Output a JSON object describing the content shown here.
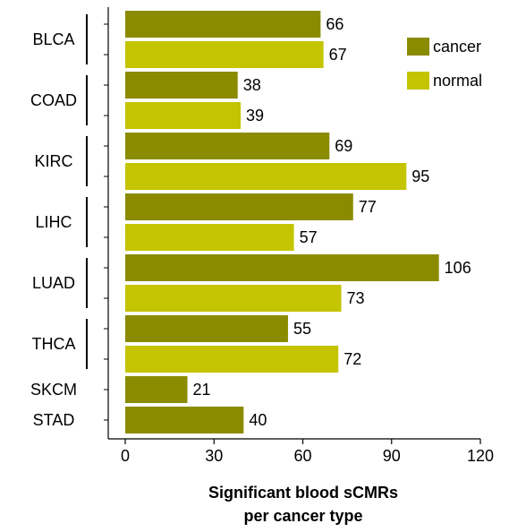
{
  "chart_data": {
    "type": "bar",
    "orientation": "horizontal",
    "categories": [
      "BLCA",
      "COAD",
      "KIRC",
      "LIHC",
      "LUAD",
      "THCA",
      "SKCM",
      "STAD"
    ],
    "series": [
      {
        "name": "cancer",
        "color": "#8b8b00",
        "values": [
          66,
          38,
          69,
          77,
          106,
          55,
          21,
          40
        ]
      },
      {
        "name": "normal",
        "color": "#c4c400",
        "values": [
          67,
          39,
          95,
          57,
          73,
          72,
          null,
          null
        ]
      }
    ],
    "xlabel": [
      "Significant blood sCMRs",
      "per cancer type"
    ],
    "xlim": [
      0,
      120
    ],
    "xticks": [
      0,
      30,
      60,
      90,
      120
    ],
    "grid": false,
    "legend": "top right"
  }
}
